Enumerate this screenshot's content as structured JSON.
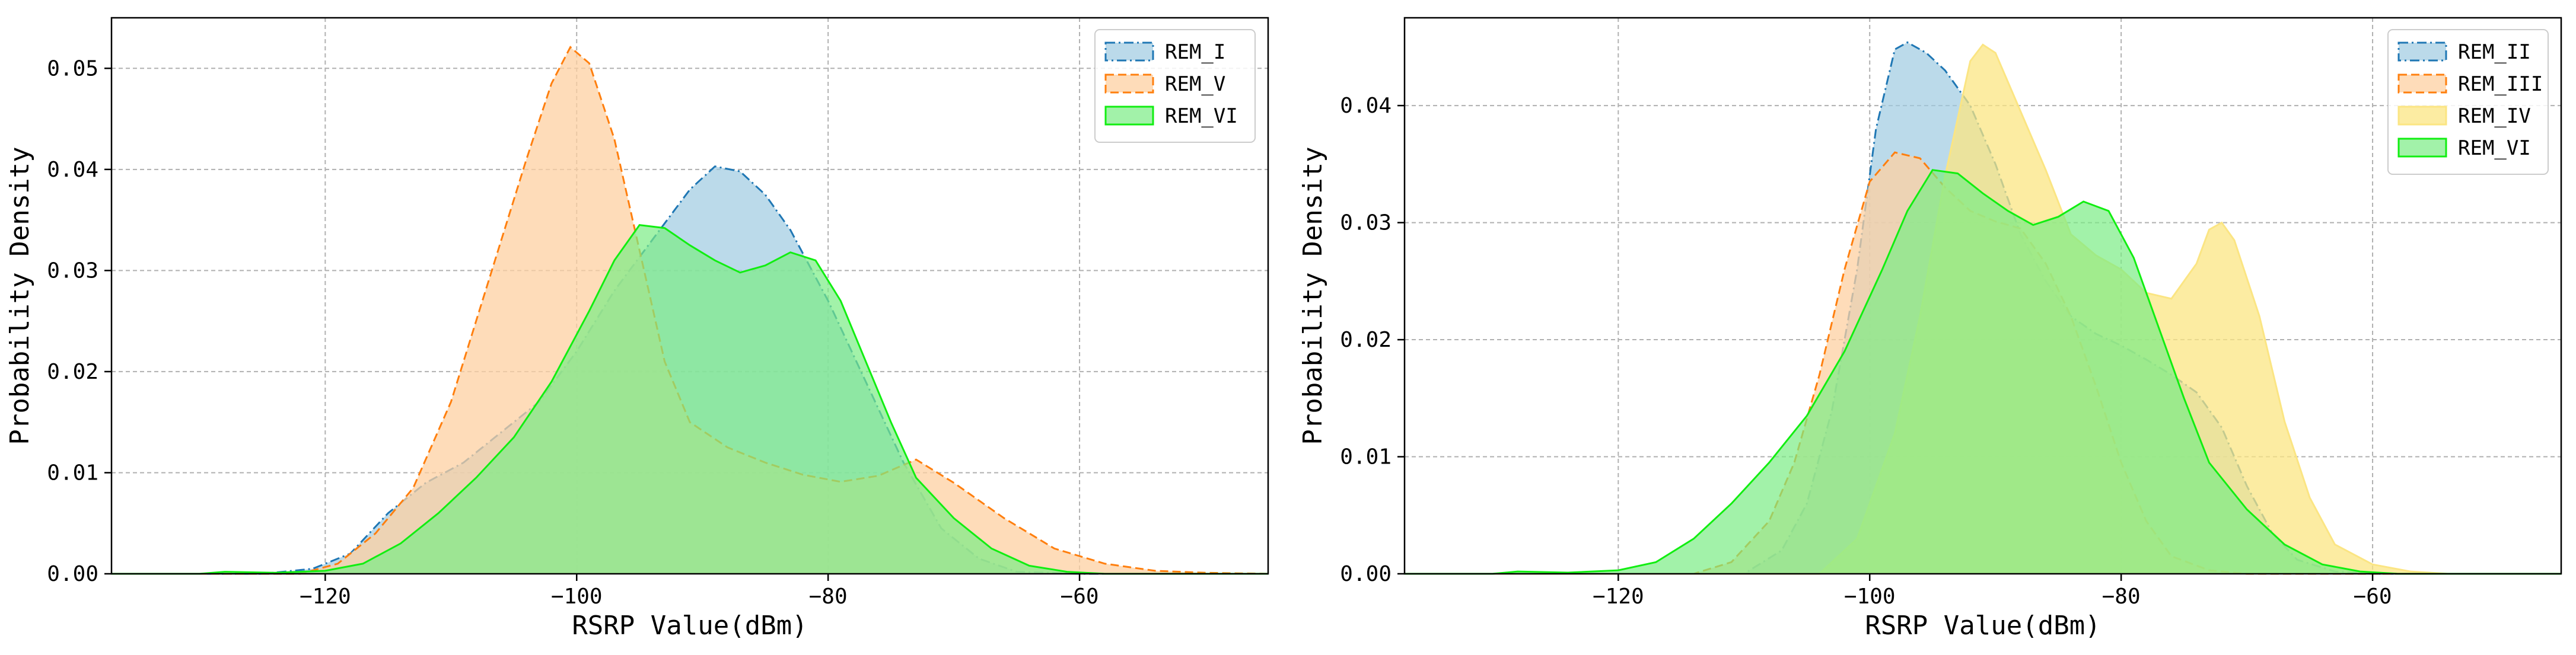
{
  "chart_data": [
    {
      "type": "area",
      "xlabel": "RSRP Value(dBm)",
      "ylabel": "Probability Density",
      "xlim": [
        -137,
        -45
      ],
      "ylim": [
        0,
        0.055
      ],
      "xticks": [
        -120,
        -100,
        -80,
        -60
      ],
      "yticks": [
        0.0,
        0.01,
        0.02,
        0.03,
        0.04,
        0.05
      ],
      "xtick_labels": [
        "−120",
        "−100",
        "−80",
        "−60"
      ],
      "ytick_labels": [
        "0.00",
        "0.01",
        "0.02",
        "0.03",
        "0.04",
        "0.05"
      ],
      "grid": true,
      "legend_position": "top-right",
      "series": [
        {
          "name": "REM_I",
          "fill": "#9ecae1",
          "stroke": "#1f77b4",
          "fill_opacity": 0.7,
          "dash": "dashdot",
          "points": [
            [
              -137,
              0
            ],
            [
              -125,
              0
            ],
            [
              -121,
              0.0005
            ],
            [
              -118,
              0.002
            ],
            [
              -115,
              0.006
            ],
            [
              -112,
              0.009
            ],
            [
              -109,
              0.011
            ],
            [
              -106,
              0.014
            ],
            [
              -103,
              0.017
            ],
            [
              -100,
              0.022
            ],
            [
              -97,
              0.028
            ],
            [
              -94,
              0.033
            ],
            [
              -91,
              0.038
            ],
            [
              -89,
              0.0403
            ],
            [
              -87,
              0.0398
            ],
            [
              -85,
              0.0375
            ],
            [
              -83,
              0.034
            ],
            [
              -80,
              0.027
            ],
            [
              -77,
              0.019
            ],
            [
              -74,
              0.011
            ],
            [
              -71,
              0.0045
            ],
            [
              -68,
              0.0015
            ],
            [
              -65,
              0.0002
            ],
            [
              -60,
              0
            ],
            [
              -45,
              0
            ]
          ]
        },
        {
          "name": "REM_V",
          "fill": "#fdd0a2",
          "stroke": "#ff7f0e",
          "fill_opacity": 0.75,
          "dash": "dashed",
          "points": [
            [
              -137,
              0
            ],
            [
              -122,
              0
            ],
            [
              -119,
              0.001
            ],
            [
              -116,
              0.004
            ],
            [
              -113,
              0.0085
            ],
            [
              -110,
              0.017
            ],
            [
              -107,
              0.029
            ],
            [
              -104,
              0.041
            ],
            [
              -102,
              0.0485
            ],
            [
              -100.5,
              0.0521
            ],
            [
              -99,
              0.0505
            ],
            [
              -97,
              0.043
            ],
            [
              -95,
              0.032
            ],
            [
              -93,
              0.021
            ],
            [
              -91,
              0.015
            ],
            [
              -88,
              0.0125
            ],
            [
              -85,
              0.011
            ],
            [
              -82,
              0.0098
            ],
            [
              -79,
              0.0091
            ],
            [
              -76,
              0.0097
            ],
            [
              -73,
              0.0113
            ],
            [
              -70,
              0.009
            ],
            [
              -66,
              0.0055
            ],
            [
              -62,
              0.0025
            ],
            [
              -58,
              0.001
            ],
            [
              -54,
              0.0003
            ],
            [
              -50,
              0.0001
            ],
            [
              -45,
              0
            ]
          ]
        },
        {
          "name": "REM_VI",
          "fill": "#7bed85",
          "stroke": "#11ee11",
          "fill_opacity": 0.7,
          "dash": "solid",
          "points": [
            [
              -137,
              0
            ],
            [
              -130,
              0
            ],
            [
              -128,
              0.0002
            ],
            [
              -124,
              0.0001
            ],
            [
              -120,
              0.0003
            ],
            [
              -117,
              0.001
            ],
            [
              -114,
              0.003
            ],
            [
              -111,
              0.006
            ],
            [
              -108,
              0.0095
            ],
            [
              -105,
              0.0135
            ],
            [
              -102,
              0.019
            ],
            [
              -99,
              0.026
            ],
            [
              -97,
              0.031
            ],
            [
              -95,
              0.0345
            ],
            [
              -93,
              0.0342
            ],
            [
              -91,
              0.0325
            ],
            [
              -89,
              0.031
            ],
            [
              -87,
              0.0298
            ],
            [
              -85,
              0.0305
            ],
            [
              -83,
              0.0318
            ],
            [
              -81,
              0.031
            ],
            [
              -79,
              0.027
            ],
            [
              -77,
              0.021
            ],
            [
              -75,
              0.015
            ],
            [
              -73,
              0.0095
            ],
            [
              -70,
              0.0055
            ],
            [
              -67,
              0.0025
            ],
            [
              -64,
              0.0008
            ],
            [
              -61,
              0.0002
            ],
            [
              -58,
              0
            ],
            [
              -45,
              0
            ]
          ]
        }
      ]
    },
    {
      "type": "area",
      "xlabel": "RSRP Value(dBm)",
      "ylabel": "Probability Density",
      "xlim": [
        -137,
        -45
      ],
      "ylim": [
        0,
        0.0475
      ],
      "xticks": [
        -120,
        -100,
        -80,
        -60
      ],
      "yticks": [
        0.0,
        0.01,
        0.02,
        0.03,
        0.04
      ],
      "xtick_labels": [
        "−120",
        "−100",
        "−80",
        "−60"
      ],
      "ytick_labels": [
        "0.00",
        "0.01",
        "0.02",
        "0.03",
        "0.04"
      ],
      "grid": true,
      "legend_position": "top-right",
      "series": [
        {
          "name": "REM_II",
          "fill": "#9ecae1",
          "stroke": "#1f77b4",
          "fill_opacity": 0.7,
          "dash": "dashdot",
          "points": [
            [
              -137,
              0
            ],
            [
              -110,
              0
            ],
            [
              -107,
              0.002
            ],
            [
              -105,
              0.006
            ],
            [
              -103,
              0.014
            ],
            [
              -101,
              0.026
            ],
            [
              -99.5,
              0.038
            ],
            [
              -98,
              0.0448
            ],
            [
              -97,
              0.0454
            ],
            [
              -95.5,
              0.0445
            ],
            [
              -94,
              0.043
            ],
            [
              -92,
              0.04
            ],
            [
              -90,
              0.035
            ],
            [
              -88,
              0.029
            ],
            [
              -86,
              0.025
            ],
            [
              -84,
              0.022
            ],
            [
              -82,
              0.0205
            ],
            [
              -80,
              0.0195
            ],
            [
              -78,
              0.0183
            ],
            [
              -76,
              0.017
            ],
            [
              -74,
              0.0155
            ],
            [
              -72,
              0.0125
            ],
            [
              -70,
              0.0075
            ],
            [
              -68,
              0.0035
            ],
            [
              -66,
              0.0012
            ],
            [
              -63,
              0.0002
            ],
            [
              -60,
              0
            ],
            [
              -45,
              0
            ]
          ]
        },
        {
          "name": "REM_III",
          "fill": "#fdd0a2",
          "stroke": "#ff7f0e",
          "fill_opacity": 0.75,
          "dash": "dashed",
          "points": [
            [
              -137,
              0
            ],
            [
              -114,
              0
            ],
            [
              -111,
              0.001
            ],
            [
              -108,
              0.0045
            ],
            [
              -106,
              0.0095
            ],
            [
              -104,
              0.017
            ],
            [
              -102,
              0.026
            ],
            [
              -100,
              0.0335
            ],
            [
              -98,
              0.036
            ],
            [
              -96,
              0.0355
            ],
            [
              -94,
              0.033
            ],
            [
              -92,
              0.031
            ],
            [
              -90,
              0.0301
            ],
            [
              -88,
              0.0295
            ],
            [
              -86,
              0.0265
            ],
            [
              -84,
              0.022
            ],
            [
              -82,
              0.016
            ],
            [
              -80,
              0.0095
            ],
            [
              -78,
              0.0045
            ],
            [
              -76,
              0.0015
            ],
            [
              -73,
              0.0003
            ],
            [
              -70,
              0
            ],
            [
              -45,
              0
            ]
          ]
        },
        {
          "name": "REM_IV",
          "fill": "#fbe583",
          "stroke": "#fbe583",
          "fill_opacity": 0.75,
          "dash": "solid",
          "points": [
            [
              -137,
              0
            ],
            [
              -104,
              0
            ],
            [
              -101,
              0.003
            ],
            [
              -98,
              0.012
            ],
            [
              -96,
              0.022
            ],
            [
              -94,
              0.034
            ],
            [
              -92,
              0.0438
            ],
            [
              -91,
              0.0452
            ],
            [
              -90,
              0.0445
            ],
            [
              -88,
              0.0395
            ],
            [
              -86,
              0.0345
            ],
            [
              -84,
              0.029
            ],
            [
              -82,
              0.0272
            ],
            [
              -80,
              0.026
            ],
            [
              -78,
              0.024
            ],
            [
              -76,
              0.0235
            ],
            [
              -74,
              0.0265
            ],
            [
              -73,
              0.0294
            ],
            [
              -72,
              0.03
            ],
            [
              -71,
              0.0285
            ],
            [
              -69,
              0.022
            ],
            [
              -67,
              0.013
            ],
            [
              -65,
              0.0065
            ],
            [
              -63,
              0.0025
            ],
            [
              -60,
              0.0008
            ],
            [
              -57,
              0.0002
            ],
            [
              -54,
              0
            ],
            [
              -45,
              0
            ]
          ]
        },
        {
          "name": "REM_VI",
          "fill": "#7bed85",
          "stroke": "#11ee11",
          "fill_opacity": 0.7,
          "dash": "solid",
          "points": [
            [
              -137,
              0
            ],
            [
              -130,
              0
            ],
            [
              -128,
              0.0002
            ],
            [
              -124,
              0.0001
            ],
            [
              -120,
              0.0003
            ],
            [
              -117,
              0.001
            ],
            [
              -114,
              0.003
            ],
            [
              -111,
              0.006
            ],
            [
              -108,
              0.0095
            ],
            [
              -105,
              0.0135
            ],
            [
              -102,
              0.019
            ],
            [
              -99,
              0.026
            ],
            [
              -97,
              0.031
            ],
            [
              -95,
              0.0345
            ],
            [
              -93,
              0.0342
            ],
            [
              -91,
              0.0325
            ],
            [
              -89,
              0.031
            ],
            [
              -87,
              0.0298
            ],
            [
              -85,
              0.0305
            ],
            [
              -83,
              0.0318
            ],
            [
              -81,
              0.031
            ],
            [
              -79,
              0.027
            ],
            [
              -77,
              0.021
            ],
            [
              -75,
              0.015
            ],
            [
              -73,
              0.0095
            ],
            [
              -70,
              0.0055
            ],
            [
              -67,
              0.0025
            ],
            [
              -64,
              0.0008
            ],
            [
              -61,
              0.0002
            ],
            [
              -58,
              0
            ],
            [
              -45,
              0
            ]
          ]
        }
      ]
    }
  ]
}
